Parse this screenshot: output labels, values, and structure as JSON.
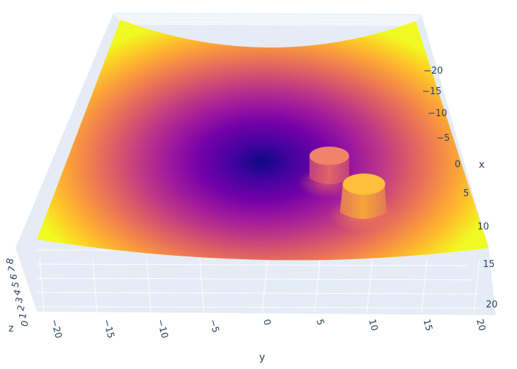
{
  "chart_data": {
    "type": "surface",
    "colorscale": [
      "#0d0887",
      "#46039f",
      "#7201a8",
      "#9c179e",
      "#bd3786",
      "#d8576b",
      "#ed7953",
      "#fb9f3a",
      "#fdca26",
      "#f0f921"
    ],
    "background_color": "#e5ecf6",
    "grid": true,
    "axes": {
      "x": {
        "title": "x",
        "ticks": [
          "20",
          "15",
          "10",
          "5",
          "0",
          "−5",
          "−10",
          "−15",
          "−20"
        ]
      },
      "y": {
        "title": "y",
        "ticks": [
          "−20",
          "−15",
          "−10",
          "−5",
          "0",
          "5",
          "10",
          "15",
          "20"
        ]
      },
      "z": {
        "title": "z",
        "ticks": [
          "0",
          "1",
          "2",
          "3",
          "4",
          "5",
          "6",
          "7",
          "8"
        ]
      }
    },
    "surface": {
      "description_function": "paraboloid z = (x^2 + y^2)/100 with two raised cylindrical plateaus",
      "x_range": [
        -20,
        20
      ],
      "y_range": [
        -20,
        20
      ],
      "z_range": [
        0,
        8
      ],
      "plateaus": [
        {
          "x": 0,
          "y": 7,
          "height": 4.5
        },
        {
          "x": 3,
          "y": 10,
          "height": 6
        }
      ]
    }
  }
}
